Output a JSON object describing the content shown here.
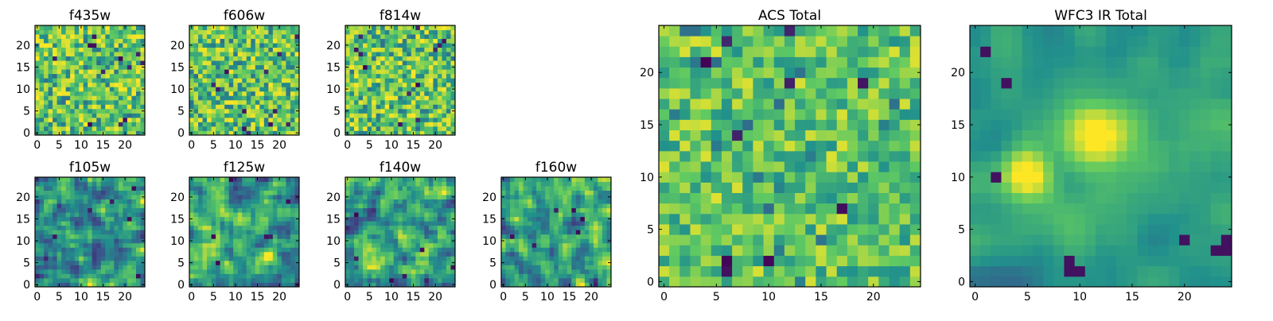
{
  "figure": {
    "colormap": [
      "#440154",
      "#3b528b",
      "#21918c",
      "#5ec962",
      "#fde725"
    ],
    "grid_size": 25
  },
  "panels": [
    {
      "key": "f435w",
      "title": "f435w",
      "xticks": [
        "0",
        "5",
        "10",
        "15",
        "20"
      ],
      "yticks": [
        "0",
        "5",
        "10",
        "15",
        "20"
      ],
      "texture": "noise",
      "seed": 11
    },
    {
      "key": "f606w",
      "title": "f606w",
      "xticks": [
        "0",
        "5",
        "10",
        "15",
        "20"
      ],
      "yticks": [
        "0",
        "5",
        "10",
        "15",
        "20"
      ],
      "texture": "noise",
      "seed": 23
    },
    {
      "key": "f814w",
      "title": "f814w",
      "xticks": [
        "0",
        "5",
        "10",
        "15",
        "20"
      ],
      "yticks": [
        "0",
        "5",
        "10",
        "15",
        "20"
      ],
      "texture": "noise",
      "seed": 37
    },
    {
      "key": "f105w",
      "title": "f105w",
      "xticks": [
        "0",
        "5",
        "10",
        "15",
        "20"
      ],
      "yticks": [
        "0",
        "5",
        "10",
        "15",
        "20"
      ],
      "texture": "smooth",
      "seed": 41
    },
    {
      "key": "f125w",
      "title": "f125w",
      "xticks": [
        "0",
        "5",
        "10",
        "15",
        "20"
      ],
      "yticks": [
        "0",
        "5",
        "10",
        "15",
        "20"
      ],
      "texture": "smooth",
      "seed": 53
    },
    {
      "key": "f140w",
      "title": "f140w",
      "xticks": [
        "0",
        "5",
        "10",
        "15",
        "20"
      ],
      "yticks": [
        "0",
        "5",
        "10",
        "15",
        "20"
      ],
      "texture": "smooth",
      "seed": 67
    },
    {
      "key": "f160w",
      "title": "f160w",
      "xticks": [
        "0",
        "5",
        "10",
        "15",
        "20"
      ],
      "yticks": [
        "0",
        "5",
        "10",
        "15",
        "20"
      ],
      "texture": "smooth",
      "seed": 79
    },
    {
      "key": "acs-total",
      "title": "ACS Total",
      "xticks": [
        "0",
        "5",
        "10",
        "15",
        "20"
      ],
      "yticks": [
        "0",
        "5",
        "10",
        "15",
        "20"
      ],
      "texture": "noise-bright",
      "seed": 83
    },
    {
      "key": "wfc3-ir-total",
      "title": "WFC3 IR Total",
      "xticks": [
        "0",
        "5",
        "10",
        "15",
        "20"
      ],
      "yticks": [
        "0",
        "5",
        "10",
        "15",
        "20"
      ],
      "texture": "source",
      "seed": 97
    }
  ],
  "chart_data": {
    "type": "heatmap",
    "panel_titles": [
      "f435w",
      "f606w",
      "f814w",
      "f105w",
      "f125w",
      "f140w",
      "f160w",
      "ACS Total",
      "WFC3 IR Total"
    ],
    "x_range": [
      0,
      24
    ],
    "y_range": [
      0,
      24
    ],
    "tick_values": [
      0,
      5,
      10,
      15,
      20
    ],
    "features": {
      "WFC3 IR Total": "bright blob centered near (5, 10) and (12, 14)",
      "ACS Total": "noisy background"
    }
  }
}
